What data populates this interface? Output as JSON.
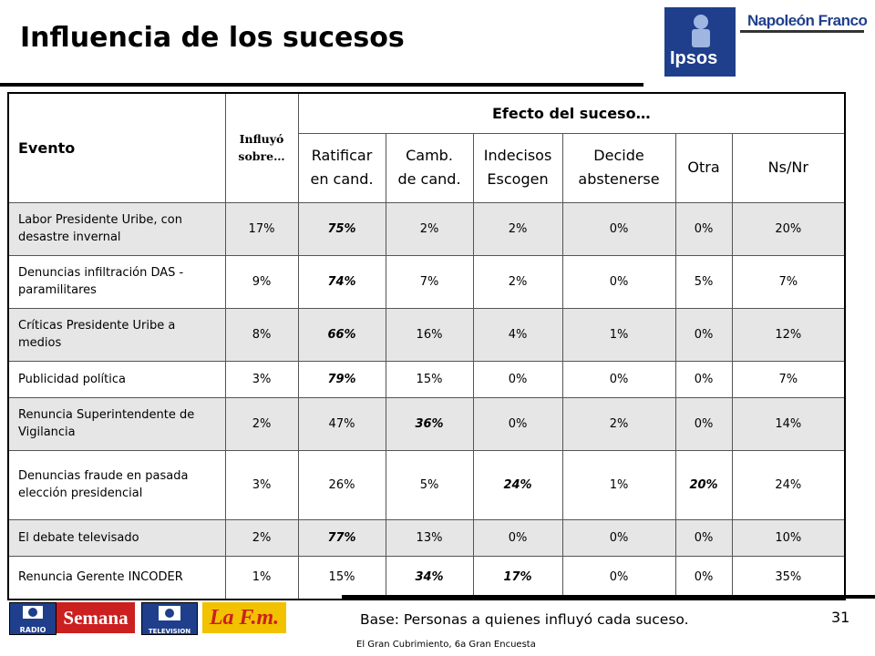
{
  "title": "Influencia de los sucesos",
  "brands": {
    "ipsos": "Ipsos",
    "napoleon": "Napoleón Franco"
  },
  "table": {
    "header_evento": "Evento",
    "header_influyo": "Influyó sobre…",
    "header_efecto": "Efecto del suceso…",
    "sub_headers": [
      [
        "Ratificar",
        "en cand."
      ],
      [
        "Camb.",
        "de cand."
      ],
      [
        "Indecisos",
        "Escogen"
      ],
      [
        "Decide",
        "abstenerse"
      ],
      [
        "Otra"
      ],
      [
        "Ns/Nr"
      ]
    ],
    "rows": [
      {
        "evento": "Labor Presidente Uribe, con desastre invernal",
        "values": [
          "17%",
          "75%",
          "2%",
          "2%",
          "0%",
          "0%",
          "20%"
        ],
        "bold": [
          1
        ]
      },
      {
        "evento": "Denuncias infiltración DAS - paramilitares",
        "values": [
          "9%",
          "74%",
          "7%",
          "2%",
          "0%",
          "5%",
          "7%"
        ],
        "bold": [
          1
        ]
      },
      {
        "evento": "Críticas Presidente Uribe a medios",
        "values": [
          "8%",
          "66%",
          "16%",
          "4%",
          "1%",
          "0%",
          "12%"
        ],
        "bold": [
          1
        ]
      },
      {
        "evento": "Publicidad política",
        "values": [
          "3%",
          "79%",
          "15%",
          "0%",
          "0%",
          "0%",
          "7%"
        ],
        "bold": [
          1
        ]
      },
      {
        "evento": "Renuncia Superintendente de Vigilancia",
        "values": [
          "2%",
          "47%",
          "36%",
          "0%",
          "2%",
          "0%",
          "14%"
        ],
        "bold": [
          2
        ]
      },
      {
        "evento": "Denuncias fraude en pasada elección presidencial",
        "values": [
          "3%",
          "26%",
          "5%",
          "24%",
          "1%",
          "20%",
          "24%"
        ],
        "bold": [
          3,
          5
        ]
      },
      {
        "evento": "El debate televisado",
        "values": [
          "2%",
          "77%",
          "13%",
          "0%",
          "0%",
          "0%",
          "10%"
        ],
        "bold": [
          1
        ]
      },
      {
        "evento": "Renuncia Gerente INCODER",
        "values": [
          "1%",
          "15%",
          "34%",
          "17%",
          "0%",
          "0%",
          "35%"
        ],
        "bold": [
          2,
          3
        ]
      }
    ]
  },
  "footer": {
    "logos": [
      "RADIO",
      "Semana",
      "TELEVISION",
      "La F.m."
    ],
    "base": "Base: Personas a quienes influyó cada suceso.",
    "page": "31",
    "note": "El Gran Cubrimiento, 6a Gran Encuesta"
  },
  "colors": {
    "shade": "#e6e6e6",
    "ipsos_blue": "#1f3f8c",
    "semana_red": "#cc1f1f",
    "lafm_yellow": "#f2c200"
  }
}
